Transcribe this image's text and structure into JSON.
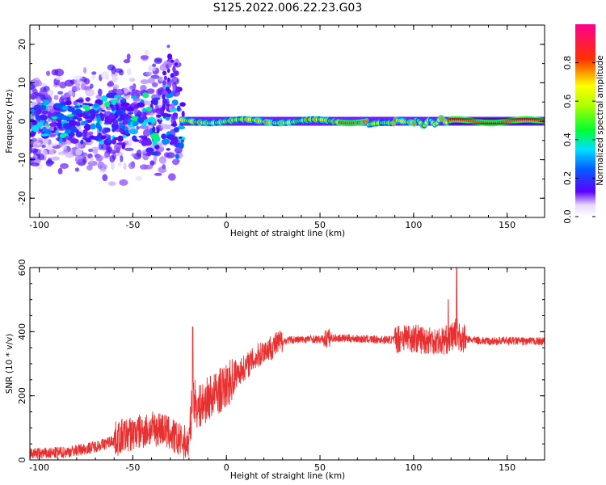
{
  "title": "S125.2022.006.22.23.G03",
  "chart_data": [
    {
      "type": "heatmap",
      "xlabel": "Height of straight line (km)",
      "ylabel": "Frequency (Hz)",
      "xlim": [
        -105,
        170
      ],
      "ylim": [
        -25,
        25
      ],
      "xticks": [
        "-100",
        "-50",
        "0",
        "50",
        "100",
        "150"
      ],
      "yticks": [
        "-20",
        "-10",
        "0",
        "10",
        "20"
      ],
      "colorbar": {
        "label": "Normalized spectral amplitude",
        "range": [
          0.0,
          1.0
        ],
        "ticks": [
          "0.0",
          "0.2",
          "0.4",
          "0.6",
          "0.8"
        ],
        "colors": [
          "#ffffff",
          "#5a00ff",
          "#0060ff",
          "#00e0ff",
          "#00ff30",
          "#ffff00",
          "#ff3000",
          "#ff0090"
        ]
      },
      "frequency_trace_hz": 0
    },
    {
      "type": "line",
      "xlabel": "Height of straight line (km)",
      "ylabel": "SNR (10 * v/v)",
      "xlim": [
        -105,
        170
      ],
      "ylim": [
        0,
        600
      ],
      "xticks": [
        "-100",
        "-50",
        "0",
        "50",
        "100",
        "150"
      ],
      "yticks": [
        "0",
        "200",
        "400",
        "600"
      ],
      "color": "#e83030",
      "series": [
        {
          "x": [
            -105,
            -95,
            -85,
            -75,
            -65,
            -55,
            -45,
            -35,
            -25,
            -20,
            -18,
            -15,
            -10,
            -5,
            0,
            5,
            10,
            15,
            20,
            25,
            30,
            35,
            40,
            45,
            50,
            55,
            60,
            70,
            80,
            90,
            95,
            100,
            105,
            110,
            115,
            120,
            123,
            125,
            130,
            140,
            150,
            160,
            170
          ],
          "y": [
            20,
            20,
            25,
            35,
            50,
            75,
            90,
            100,
            60,
            50,
            200,
            160,
            190,
            210,
            230,
            265,
            290,
            315,
            340,
            355,
            370,
            375,
            375,
            378,
            375,
            380,
            380,
            378,
            375,
            375,
            385,
            380,
            375,
            375,
            370,
            380,
            400,
            380,
            375,
            370,
            372,
            370,
            370
          ]
        }
      ]
    }
  ]
}
